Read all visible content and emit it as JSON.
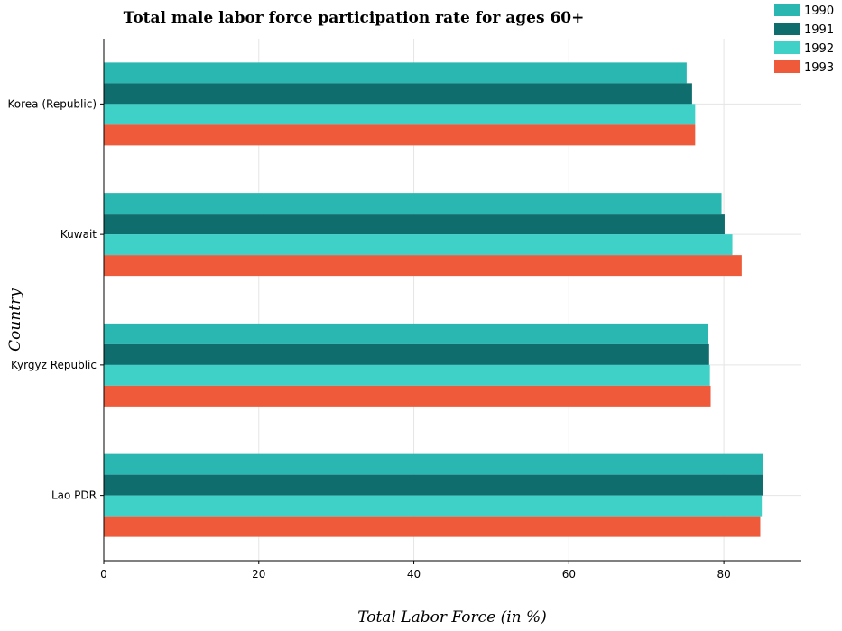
{
  "chart_data": {
    "type": "bar",
    "orientation": "horizontal",
    "title": "Total male labor force participation rate for ages 60+",
    "xlabel": "Total Labor Force (in %)",
    "ylabel": "Country",
    "categories": [
      "Korea (Republic)",
      "Kuwait",
      "Kyrgyz Republic",
      "Lao PDR"
    ],
    "series": [
      {
        "name": "1990",
        "color": "#2ab7b2",
        "values": [
          75.2,
          79.7,
          78.0,
          85.0
        ]
      },
      {
        "name": "1991",
        "color": "#0f6d6d",
        "values": [
          75.9,
          80.1,
          78.1,
          85.0
        ]
      },
      {
        "name": "1992",
        "color": "#3fd0c8",
        "values": [
          76.3,
          81.1,
          78.2,
          84.9
        ]
      },
      {
        "name": "1993",
        "color": "#ee5a3a",
        "values": [
          76.3,
          82.3,
          78.3,
          84.7
        ]
      }
    ],
    "xlim": [
      0,
      90
    ],
    "xticks": [
      0,
      20,
      40,
      60,
      80
    ],
    "grid": true,
    "legend_position": "top-right"
  }
}
